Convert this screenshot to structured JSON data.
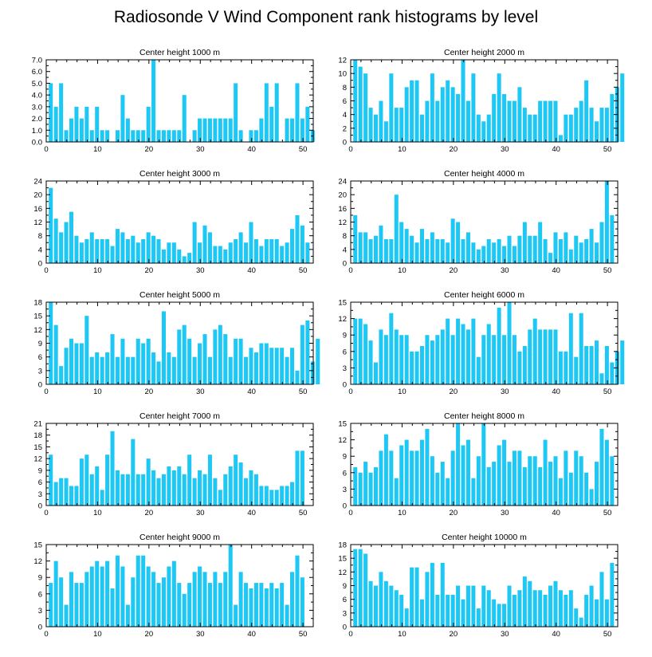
{
  "title": "Radiosonde V Wind Component rank histograms by level",
  "bar_color": "#1ec8f4",
  "chart_data": [
    {
      "type": "bar",
      "title": "Center height 1000 m",
      "xlim": [
        0,
        52
      ],
      "ylim": [
        0,
        7
      ],
      "xticks": [
        "0",
        "10",
        "20",
        "30",
        "40",
        "50"
      ],
      "yticks": [
        "0.0",
        "1.0",
        "2.0",
        "3.0",
        "4.0",
        "5.0",
        "6.0",
        "7.0"
      ],
      "values": [
        5,
        3,
        5,
        1,
        2,
        3,
        2,
        3,
        1,
        3,
        1,
        1,
        0,
        1,
        4,
        2,
        1,
        1,
        1,
        3,
        7,
        1,
        1,
        1,
        1,
        1,
        4,
        0,
        1,
        2,
        2,
        2,
        2,
        2,
        2,
        2,
        5,
        1,
        0,
        1,
        1,
        2,
        5,
        3,
        5,
        0,
        2,
        2,
        5,
        2,
        3,
        1
      ]
    },
    {
      "type": "bar",
      "title": "Center height 2000 m",
      "xlim": [
        0,
        52
      ],
      "ylim": [
        0,
        12
      ],
      "xticks": [
        "0",
        "10",
        "20",
        "30",
        "40",
        "50"
      ],
      "yticks": [
        "0",
        "2",
        "4",
        "6",
        "8",
        "10",
        "12"
      ],
      "values": [
        12,
        11,
        10,
        5,
        4,
        6,
        3,
        10,
        5,
        5,
        8,
        9,
        9,
        4,
        6,
        10,
        6,
        8,
        9,
        8,
        7,
        12,
        6,
        10,
        4,
        3,
        4,
        7,
        10,
        7,
        6,
        6,
        8,
        5,
        4,
        4,
        6,
        6,
        6,
        6,
        1,
        4,
        4,
        5,
        6,
        9,
        5,
        3,
        5,
        5,
        7,
        8,
        10
      ]
    },
    {
      "type": "bar",
      "title": "Center height 3000 m",
      "xlim": [
        0,
        52
      ],
      "ylim": [
        0,
        24
      ],
      "xticks": [
        "0",
        "10",
        "20",
        "30",
        "40",
        "50"
      ],
      "yticks": [
        "0",
        "4",
        "8",
        "12",
        "16",
        "20",
        "24"
      ],
      "values": [
        22,
        13,
        9,
        12,
        15,
        8,
        6,
        7,
        9,
        7,
        7,
        7,
        5,
        10,
        9,
        7,
        8,
        6,
        7,
        9,
        8,
        7,
        4,
        6,
        6,
        4,
        2,
        3,
        12,
        6,
        11,
        9,
        5,
        5,
        4,
        6,
        7,
        9,
        6,
        12,
        7,
        5,
        7,
        7,
        7,
        5,
        6,
        10,
        14,
        11,
        6
      ]
    },
    {
      "type": "bar",
      "title": "Center height 4000 m",
      "xlim": [
        0,
        52
      ],
      "ylim": [
        0,
        24
      ],
      "xticks": [
        "0",
        "10",
        "20",
        "30",
        "40",
        "50"
      ],
      "yticks": [
        "0",
        "4",
        "8",
        "12",
        "16",
        "20",
        "24"
      ],
      "values": [
        14,
        9,
        9,
        7,
        8,
        11,
        7,
        7,
        20,
        12,
        10,
        8,
        6,
        10,
        7,
        9,
        7,
        7,
        6,
        13,
        12,
        7,
        9,
        6,
        4,
        5,
        7,
        6,
        7,
        5,
        8,
        5,
        8,
        12,
        8,
        8,
        12,
        7,
        3,
        9,
        7,
        9,
        4,
        8,
        6,
        7,
        10,
        6,
        12,
        24,
        14
      ]
    },
    {
      "type": "bar",
      "title": "Center height 5000 m",
      "xlim": [
        0,
        52
      ],
      "ylim": [
        0,
        18
      ],
      "xticks": [
        "0",
        "10",
        "20",
        "30",
        "40",
        "50"
      ],
      "yticks": [
        "0",
        "3",
        "6",
        "9",
        "12",
        "15",
        "18"
      ],
      "values": [
        18,
        13,
        4,
        8,
        10,
        9,
        9,
        15,
        6,
        7,
        6,
        7,
        11,
        6,
        10,
        6,
        6,
        10,
        9,
        10,
        7,
        5,
        16,
        7,
        6,
        12,
        13,
        10,
        6,
        9,
        11,
        6,
        12,
        13,
        11,
        6,
        10,
        10,
        6,
        8,
        7,
        9,
        9,
        8,
        8,
        8,
        6,
        8,
        3,
        13,
        14,
        5,
        10
      ]
    },
    {
      "type": "bar",
      "title": "Center height 6000 m",
      "xlim": [
        0,
        52
      ],
      "ylim": [
        0,
        15
      ],
      "xticks": [
        "0",
        "10",
        "20",
        "30",
        "40",
        "50"
      ],
      "yticks": [
        "0",
        "3",
        "6",
        "9",
        "12",
        "15"
      ],
      "values": [
        12,
        12,
        11,
        8,
        4,
        10,
        9,
        13,
        10,
        9,
        9,
        6,
        6,
        7,
        9,
        8,
        9,
        10,
        12,
        9,
        12,
        11,
        10,
        12,
        5,
        9,
        11,
        9,
        14,
        9,
        15,
        9,
        6,
        7,
        10,
        12,
        10,
        10,
        10,
        10,
        6,
        6,
        13,
        5,
        13,
        7,
        7,
        8,
        2,
        7,
        4,
        6,
        8
      ]
    },
    {
      "type": "bar",
      "title": "Center height 7000 m",
      "xlim": [
        0,
        52
      ],
      "ylim": [
        0,
        21
      ],
      "xticks": [
        "0",
        "10",
        "20",
        "30",
        "40",
        "50"
      ],
      "yticks": [
        "0",
        "3",
        "6",
        "9",
        "12",
        "15",
        "18",
        "21"
      ],
      "values": [
        13,
        6,
        7,
        7,
        5,
        5,
        12,
        13,
        8,
        10,
        4,
        13,
        19,
        9,
        8,
        8,
        17,
        8,
        8,
        12,
        9,
        7,
        8,
        10,
        9,
        10,
        8,
        13,
        7,
        9,
        8,
        13,
        7,
        4,
        8,
        10,
        13,
        11,
        7,
        9,
        8,
        5,
        5,
        4,
        4,
        5,
        5,
        6,
        14,
        14
      ]
    },
    {
      "type": "bar",
      "title": "Center height 8000 m",
      "xlim": [
        0,
        52
      ],
      "ylim": [
        0,
        15
      ],
      "xticks": [
        "0",
        "10",
        "20",
        "30",
        "40",
        "50"
      ],
      "yticks": [
        "0",
        "3",
        "6",
        "9",
        "12",
        "15"
      ],
      "values": [
        7,
        6,
        8,
        6,
        7,
        10,
        13,
        10,
        5,
        11,
        12,
        10,
        10,
        12,
        14,
        9,
        6,
        8,
        5,
        10,
        15,
        11,
        12,
        5,
        9,
        15,
        7,
        8,
        11,
        12,
        8,
        10,
        10,
        7,
        9,
        9,
        7,
        12,
        8,
        9,
        5,
        10,
        6,
        10,
        9,
        6,
        3,
        8,
        14,
        12,
        9
      ]
    },
    {
      "type": "bar",
      "title": "Center height 9000 m",
      "xlim": [
        0,
        52
      ],
      "ylim": [
        0,
        15
      ],
      "xticks": [
        "0",
        "10",
        "20",
        "30",
        "40",
        "50"
      ],
      "yticks": [
        "0",
        "3",
        "6",
        "9",
        "12",
        "15"
      ],
      "values": [
        8,
        12,
        9,
        4,
        10,
        8,
        8,
        10,
        11,
        12,
        11,
        12,
        7,
        13,
        11,
        4,
        9,
        13,
        13,
        11,
        10,
        8,
        9,
        11,
        12,
        8,
        6,
        8,
        10,
        11,
        10,
        8,
        10,
        8,
        10,
        15,
        4,
        10,
        8,
        7,
        8,
        8,
        7,
        8,
        7,
        8,
        4,
        10,
        13,
        9
      ]
    },
    {
      "type": "bar",
      "title": "Center height 10000 m",
      "xlim": [
        0,
        52
      ],
      "ylim": [
        0,
        18
      ],
      "xticks": [
        "0",
        "10",
        "20",
        "30",
        "40",
        "50"
      ],
      "yticks": [
        "0",
        "3",
        "6",
        "9",
        "12",
        "15",
        "18"
      ],
      "values": [
        17,
        17,
        16,
        10,
        9,
        12,
        10,
        9,
        8,
        7,
        4,
        13,
        13,
        6,
        12,
        14,
        7,
        14,
        7,
        7,
        9,
        6,
        9,
        9,
        4,
        9,
        8,
        6,
        5,
        5,
        9,
        7,
        8,
        11,
        10,
        8,
        8,
        7,
        9,
        10,
        8,
        7,
        8,
        4,
        2,
        7,
        9,
        6,
        12,
        6,
        14
      ]
    }
  ]
}
